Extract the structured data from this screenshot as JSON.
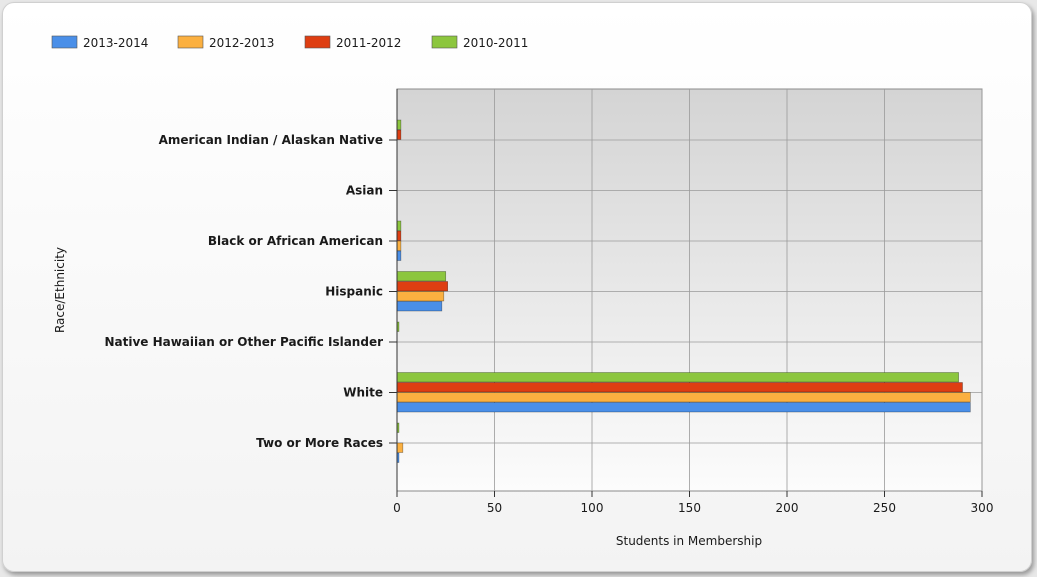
{
  "chart_data": {
    "type": "bar",
    "orientation": "horizontal",
    "categories": [
      "American Indian / Alaskan Native",
      "Asian",
      "Black or African American",
      "Hispanic",
      "Native Hawaiian or Other Pacific Islander",
      "White",
      "Two or More Races"
    ],
    "series": [
      {
        "name": "2013-2014",
        "color": "#4a8fe8",
        "values": [
          0,
          0,
          2,
          23,
          0,
          294,
          1
        ]
      },
      {
        "name": "2012-2013",
        "color": "#fbb040",
        "values": [
          0,
          0,
          2,
          24,
          0,
          294,
          3
        ]
      },
      {
        "name": "2011-2012",
        "color": "#de3e12",
        "values": [
          2,
          0,
          2,
          26,
          0,
          290,
          0
        ]
      },
      {
        "name": "2010-2011",
        "color": "#8cc63e",
        "values": [
          2,
          0,
          2,
          25,
          1,
          288,
          1
        ]
      }
    ],
    "xlabel": "Students in Membership",
    "ylabel": "Race/Ethnicity",
    "xlim": [
      0,
      300
    ],
    "xticks": [
      0,
      50,
      100,
      150,
      200,
      250,
      300
    ],
    "grid": true,
    "legend_position": "top-left"
  }
}
